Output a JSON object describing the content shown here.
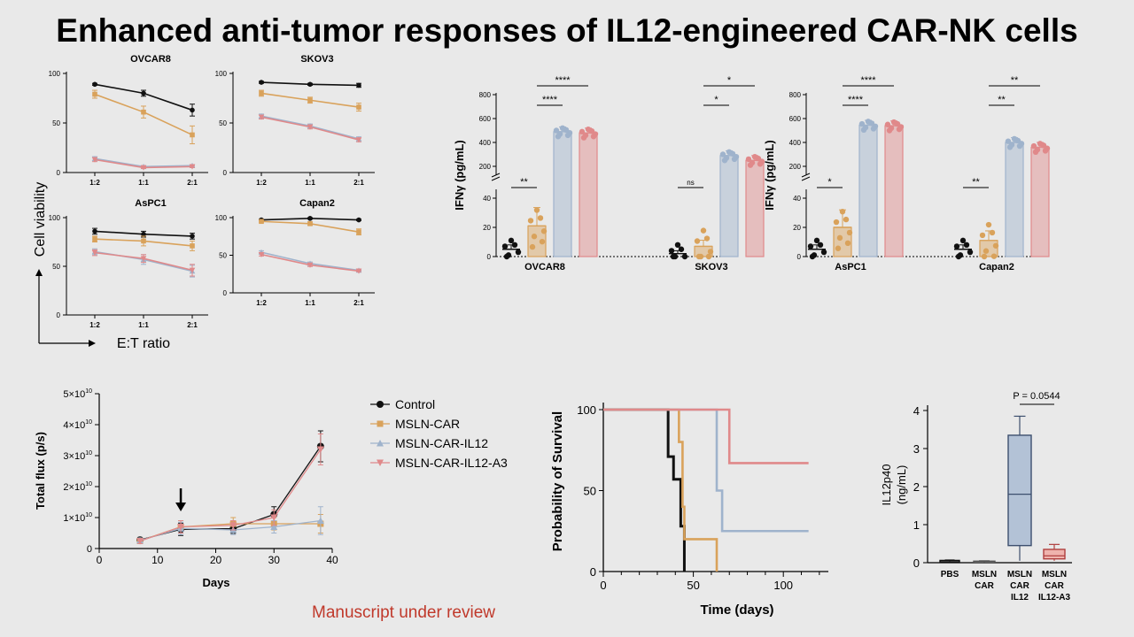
{
  "title": "Enhanced anti-tumor responses of IL12-engineered CAR-NK cells",
  "footer": "Manuscript under review",
  "colors": {
    "control": "#111111",
    "car": "#d9a25b",
    "il12": "#9fb3cc",
    "a3": "#e0898a"
  },
  "viability": {
    "ylabel": "Cell viability",
    "xlabel": "E:T ratio",
    "ratios": [
      "1:2",
      "1:1",
      "2:1"
    ],
    "yticks": [
      0,
      50,
      100
    ],
    "panels": [
      {
        "name": "OVCAR8",
        "series": [
          {
            "key": "control",
            "values": [
              89,
              80,
              63
            ],
            "err": [
              1,
              3,
              6
            ]
          },
          {
            "key": "car",
            "values": [
              79,
              61,
              38
            ],
            "err": [
              4,
              6,
              9
            ]
          },
          {
            "key": "il12",
            "values": [
              14,
              6,
              7
            ],
            "err": [
              2,
              1,
              1
            ]
          },
          {
            "key": "a3",
            "values": [
              13,
              5,
              6
            ],
            "err": [
              2,
              1,
              1
            ]
          }
        ]
      },
      {
        "name": "SKOV3",
        "series": [
          {
            "key": "control",
            "values": [
              91,
              89,
              88
            ],
            "err": [
              1,
              1,
              2
            ]
          },
          {
            "key": "car",
            "values": [
              80,
              73,
              66
            ],
            "err": [
              3,
              3,
              4
            ]
          },
          {
            "key": "il12",
            "values": [
              57,
              47,
              34
            ],
            "err": [
              2,
              2,
              2
            ]
          },
          {
            "key": "a3",
            "values": [
              56,
              46,
              33
            ],
            "err": [
              2,
              2,
              2
            ]
          }
        ]
      },
      {
        "name": "AsPC1",
        "series": [
          {
            "key": "control",
            "values": [
              86,
              83,
              81
            ],
            "err": [
              3,
              3,
              3
            ]
          },
          {
            "key": "car",
            "values": [
              78,
              76,
              71
            ],
            "err": [
              3,
              5,
              5
            ]
          },
          {
            "key": "il12",
            "values": [
              65,
              57,
              45
            ],
            "err": [
              3,
              5,
              6
            ]
          },
          {
            "key": "a3",
            "values": [
              64,
              58,
              46
            ],
            "err": [
              3,
              4,
              6
            ]
          }
        ]
      },
      {
        "name": "Capan2",
        "series": [
          {
            "key": "control",
            "values": [
              97,
              99,
              97
            ],
            "err": [
              1,
              1,
              1
            ]
          },
          {
            "key": "car",
            "values": [
              95,
              92,
              81
            ],
            "err": [
              1,
              2,
              4
            ]
          },
          {
            "key": "il12",
            "values": [
              54,
              39,
              30
            ],
            "err": [
              2,
              2,
              1
            ]
          },
          {
            "key": "a3",
            "values": [
              51,
              37,
              29
            ],
            "err": [
              2,
              2,
              1
            ]
          }
        ]
      }
    ]
  },
  "ifn": {
    "ylabel": "IFNγ (pg/mL)",
    "lower_ticks": [
      0,
      20,
      40
    ],
    "upper_ticks": [
      200,
      400,
      600,
      800
    ],
    "panels": [
      {
        "groups": [
          {
            "label": "OVCAR8",
            "values": [
              5,
              21,
              490,
              480
            ],
            "sig": [
              {
                "text": "**",
                "from": 0,
                "to": 1
              },
              {
                "text": "****",
                "from": 1,
                "to": 2
              },
              {
                "text": "****",
                "from": 1,
                "to": 3
              }
            ]
          },
          {
            "label": "SKOV3",
            "values": [
              2,
              7,
              290,
              250
            ],
            "sig": [
              {
                "text": "ns",
                "from": 0,
                "to": 1
              },
              {
                "text": "*",
                "from": 1,
                "to": 2
              },
              {
                "text": "*",
                "from": 1,
                "to": 3
              }
            ]
          }
        ]
      },
      {
        "groups": [
          {
            "label": "AsPC1",
            "values": [
              5,
              20,
              545,
              540
            ],
            "sig": [
              {
                "text": "*",
                "from": 0,
                "to": 1
              },
              {
                "text": "****",
                "from": 1,
                "to": 2
              },
              {
                "text": "****",
                "from": 1,
                "to": 3
              }
            ]
          },
          {
            "label": "Capan2",
            "values": [
              5,
              11,
              400,
              360
            ],
            "sig": [
              {
                "text": "**",
                "from": 0,
                "to": 1
              },
              {
                "text": "**",
                "from": 1,
                "to": 2
              },
              {
                "text": "**",
                "from": 1,
                "to": 3
              }
            ]
          }
        ]
      }
    ]
  },
  "flux": {
    "ylabel": "Total flux (p/s)",
    "xlabel": "Days",
    "xticks": [
      0,
      10,
      20,
      30,
      40
    ],
    "yticks": [
      "0",
      "1×10",
      "2×10",
      "3×10",
      "4×10",
      "5×10"
    ],
    "ytick_exp": "10",
    "legend": [
      "Control",
      "MSLN-CAR",
      "MSLN-CAR-IL12",
      "MSLN-CAR-IL12-A3"
    ],
    "series_keys": [
      "control",
      "car",
      "il12",
      "a3"
    ],
    "days": [
      7,
      14,
      23,
      30,
      38
    ],
    "series": [
      {
        "key": "control",
        "values": [
          2.8,
          6.2,
          6.4,
          11,
          33
        ],
        "err": [
          0.8,
          2,
          1.5,
          2.5,
          5
        ]
      },
      {
        "key": "car",
        "values": [
          2.5,
          7,
          8,
          8,
          8
        ],
        "err": [
          0.8,
          2,
          2,
          2,
          3
        ]
      },
      {
        "key": "il12",
        "values": [
          2.6,
          6.5,
          6,
          7,
          9
        ],
        "err": [
          0.8,
          2,
          1.5,
          2,
          4.5
        ]
      },
      {
        "key": "a3",
        "values": [
          2.4,
          7,
          7.5,
          10,
          32
        ],
        "err": [
          0.8,
          2,
          1.5,
          2.5,
          5
        ]
      }
    ],
    "arrow_day": 14
  },
  "survival": {
    "ylabel": "Probability of Survival",
    "xlabel": "Time (days)",
    "xticks": [
      0,
      50,
      100
    ],
    "yticks": [
      0,
      50,
      100
    ],
    "curves": [
      {
        "key": "control",
        "points": [
          [
            0,
            100
          ],
          [
            36,
            100
          ],
          [
            36,
            71
          ],
          [
            39,
            71
          ],
          [
            39,
            57
          ],
          [
            43,
            57
          ],
          [
            43,
            28
          ],
          [
            45,
            28
          ],
          [
            45,
            0
          ]
        ]
      },
      {
        "key": "car",
        "points": [
          [
            0,
            100
          ],
          [
            42,
            100
          ],
          [
            42,
            80
          ],
          [
            44,
            80
          ],
          [
            44,
            40
          ],
          [
            45,
            40
          ],
          [
            45,
            20
          ],
          [
            63,
            20
          ],
          [
            63,
            0
          ]
        ]
      },
      {
        "key": "il12",
        "points": [
          [
            0,
            100
          ],
          [
            63,
            100
          ],
          [
            63,
            50
          ],
          [
            66,
            50
          ],
          [
            66,
            25
          ],
          [
            114,
            25
          ]
        ]
      },
      {
        "key": "a3",
        "points": [
          [
            0,
            100
          ],
          [
            70,
            100
          ],
          [
            70,
            67
          ],
          [
            114,
            67
          ]
        ]
      }
    ]
  },
  "il12p40": {
    "ylabel": "IL12p40",
    "yunit": "(ng/mL)",
    "yticks": [
      0,
      1,
      2,
      3,
      4
    ],
    "pvalue": "P = 0.0544",
    "boxes": [
      {
        "label": [
          "PBS"
        ],
        "key": "control",
        "min": 0.02,
        "q1": 0.03,
        "med": 0.05,
        "q3": 0.06,
        "max": 0.07
      },
      {
        "label": [
          "MSLN",
          "CAR"
        ],
        "key": "car",
        "min": 0.01,
        "q1": 0.02,
        "med": 0.03,
        "q3": 0.04,
        "max": 0.05
      },
      {
        "label": [
          "MSLN",
          "CAR",
          "IL12"
        ],
        "key": "il12",
        "min": 0.05,
        "q1": 0.45,
        "med": 1.8,
        "q3": 3.35,
        "max": 3.85
      },
      {
        "label": [
          "MSLN",
          "CAR",
          "IL12-A3"
        ],
        "key": "a3",
        "min": 0.05,
        "q1": 0.1,
        "med": 0.18,
        "q3": 0.35,
        "max": 0.48
      }
    ]
  }
}
